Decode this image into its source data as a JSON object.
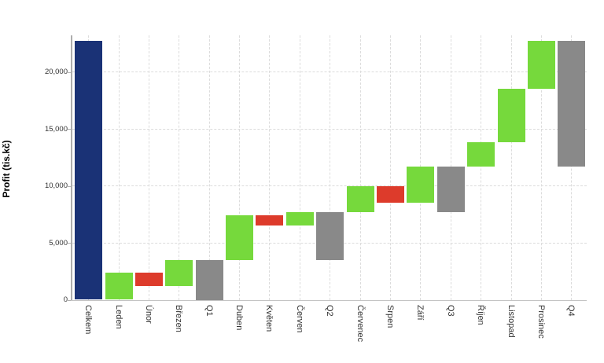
{
  "chart_data": {
    "type": "bar",
    "subtype": "waterfall",
    "title": "",
    "xlabel": "",
    "ylabel": "Profit (tis.kč)",
    "categories": [
      "Celkem",
      "Leden",
      "Únor",
      "Březen",
      "Q1",
      "Duben",
      "Květen",
      "Červen",
      "Q2",
      "Červenec",
      "Srpen",
      "Září",
      "Q3",
      "Říjen",
      "Listopad",
      "Prosinec",
      "Q4"
    ],
    "bars": [
      {
        "category": "Celkem",
        "kind": "total",
        "delta": 22700,
        "start": 0,
        "end": 22700
      },
      {
        "category": "Leden",
        "kind": "increase",
        "delta": 2400,
        "start": 0,
        "end": 2400
      },
      {
        "category": "Únor",
        "kind": "decrease",
        "delta": -1200,
        "start": 2400,
        "end": 1200
      },
      {
        "category": "Březen",
        "kind": "increase",
        "delta": 2300,
        "start": 1200,
        "end": 3500
      },
      {
        "category": "Q1",
        "kind": "subtotal",
        "delta": 3500,
        "start": 0,
        "end": 3500
      },
      {
        "category": "Duben",
        "kind": "increase",
        "delta": 3900,
        "start": 3500,
        "end": 7400
      },
      {
        "category": "Květen",
        "kind": "decrease",
        "delta": -900,
        "start": 7400,
        "end": 6500
      },
      {
        "category": "Červen",
        "kind": "increase",
        "delta": 1200,
        "start": 6500,
        "end": 7700
      },
      {
        "category": "Q2",
        "kind": "subtotal",
        "delta": 4200,
        "start": 3500,
        "end": 7700
      },
      {
        "category": "Červenec",
        "kind": "increase",
        "delta": 2300,
        "start": 7700,
        "end": 10000
      },
      {
        "category": "Srpen",
        "kind": "decrease",
        "delta": -1500,
        "start": 10000,
        "end": 8500
      },
      {
        "category": "Září",
        "kind": "increase",
        "delta": 3200,
        "start": 8500,
        "end": 11700
      },
      {
        "category": "Q3",
        "kind": "subtotal",
        "delta": 4000,
        "start": 7700,
        "end": 11700
      },
      {
        "category": "Říjen",
        "kind": "increase",
        "delta": 2100,
        "start": 11700,
        "end": 13800
      },
      {
        "category": "Listopad",
        "kind": "increase",
        "delta": 4700,
        "start": 13800,
        "end": 18500
      },
      {
        "category": "Prosinec",
        "kind": "increase",
        "delta": 4200,
        "start": 18500,
        "end": 22700
      },
      {
        "category": "Q4",
        "kind": "subtotal",
        "delta": 11000,
        "start": 11700,
        "end": 22700
      }
    ],
    "y_ticks": [
      {
        "value": 0,
        "label": "0"
      },
      {
        "value": 5000,
        "label": "5,000"
      },
      {
        "value": 10000,
        "label": "10,000"
      },
      {
        "value": 15000,
        "label": "15,000"
      },
      {
        "value": 20000,
        "label": "20,000"
      }
    ],
    "ylim": [
      0,
      23200
    ],
    "grid": true,
    "legend": false,
    "x_label_rotation_deg": 90,
    "colors": {
      "total": "#1a3276",
      "increase": "#76d93c",
      "decrease": "#dd3b2b",
      "subtotal": "#898989",
      "grid": "#dcdcdc",
      "axis": "#b0b0b0",
      "tick_text": "#333333"
    }
  }
}
